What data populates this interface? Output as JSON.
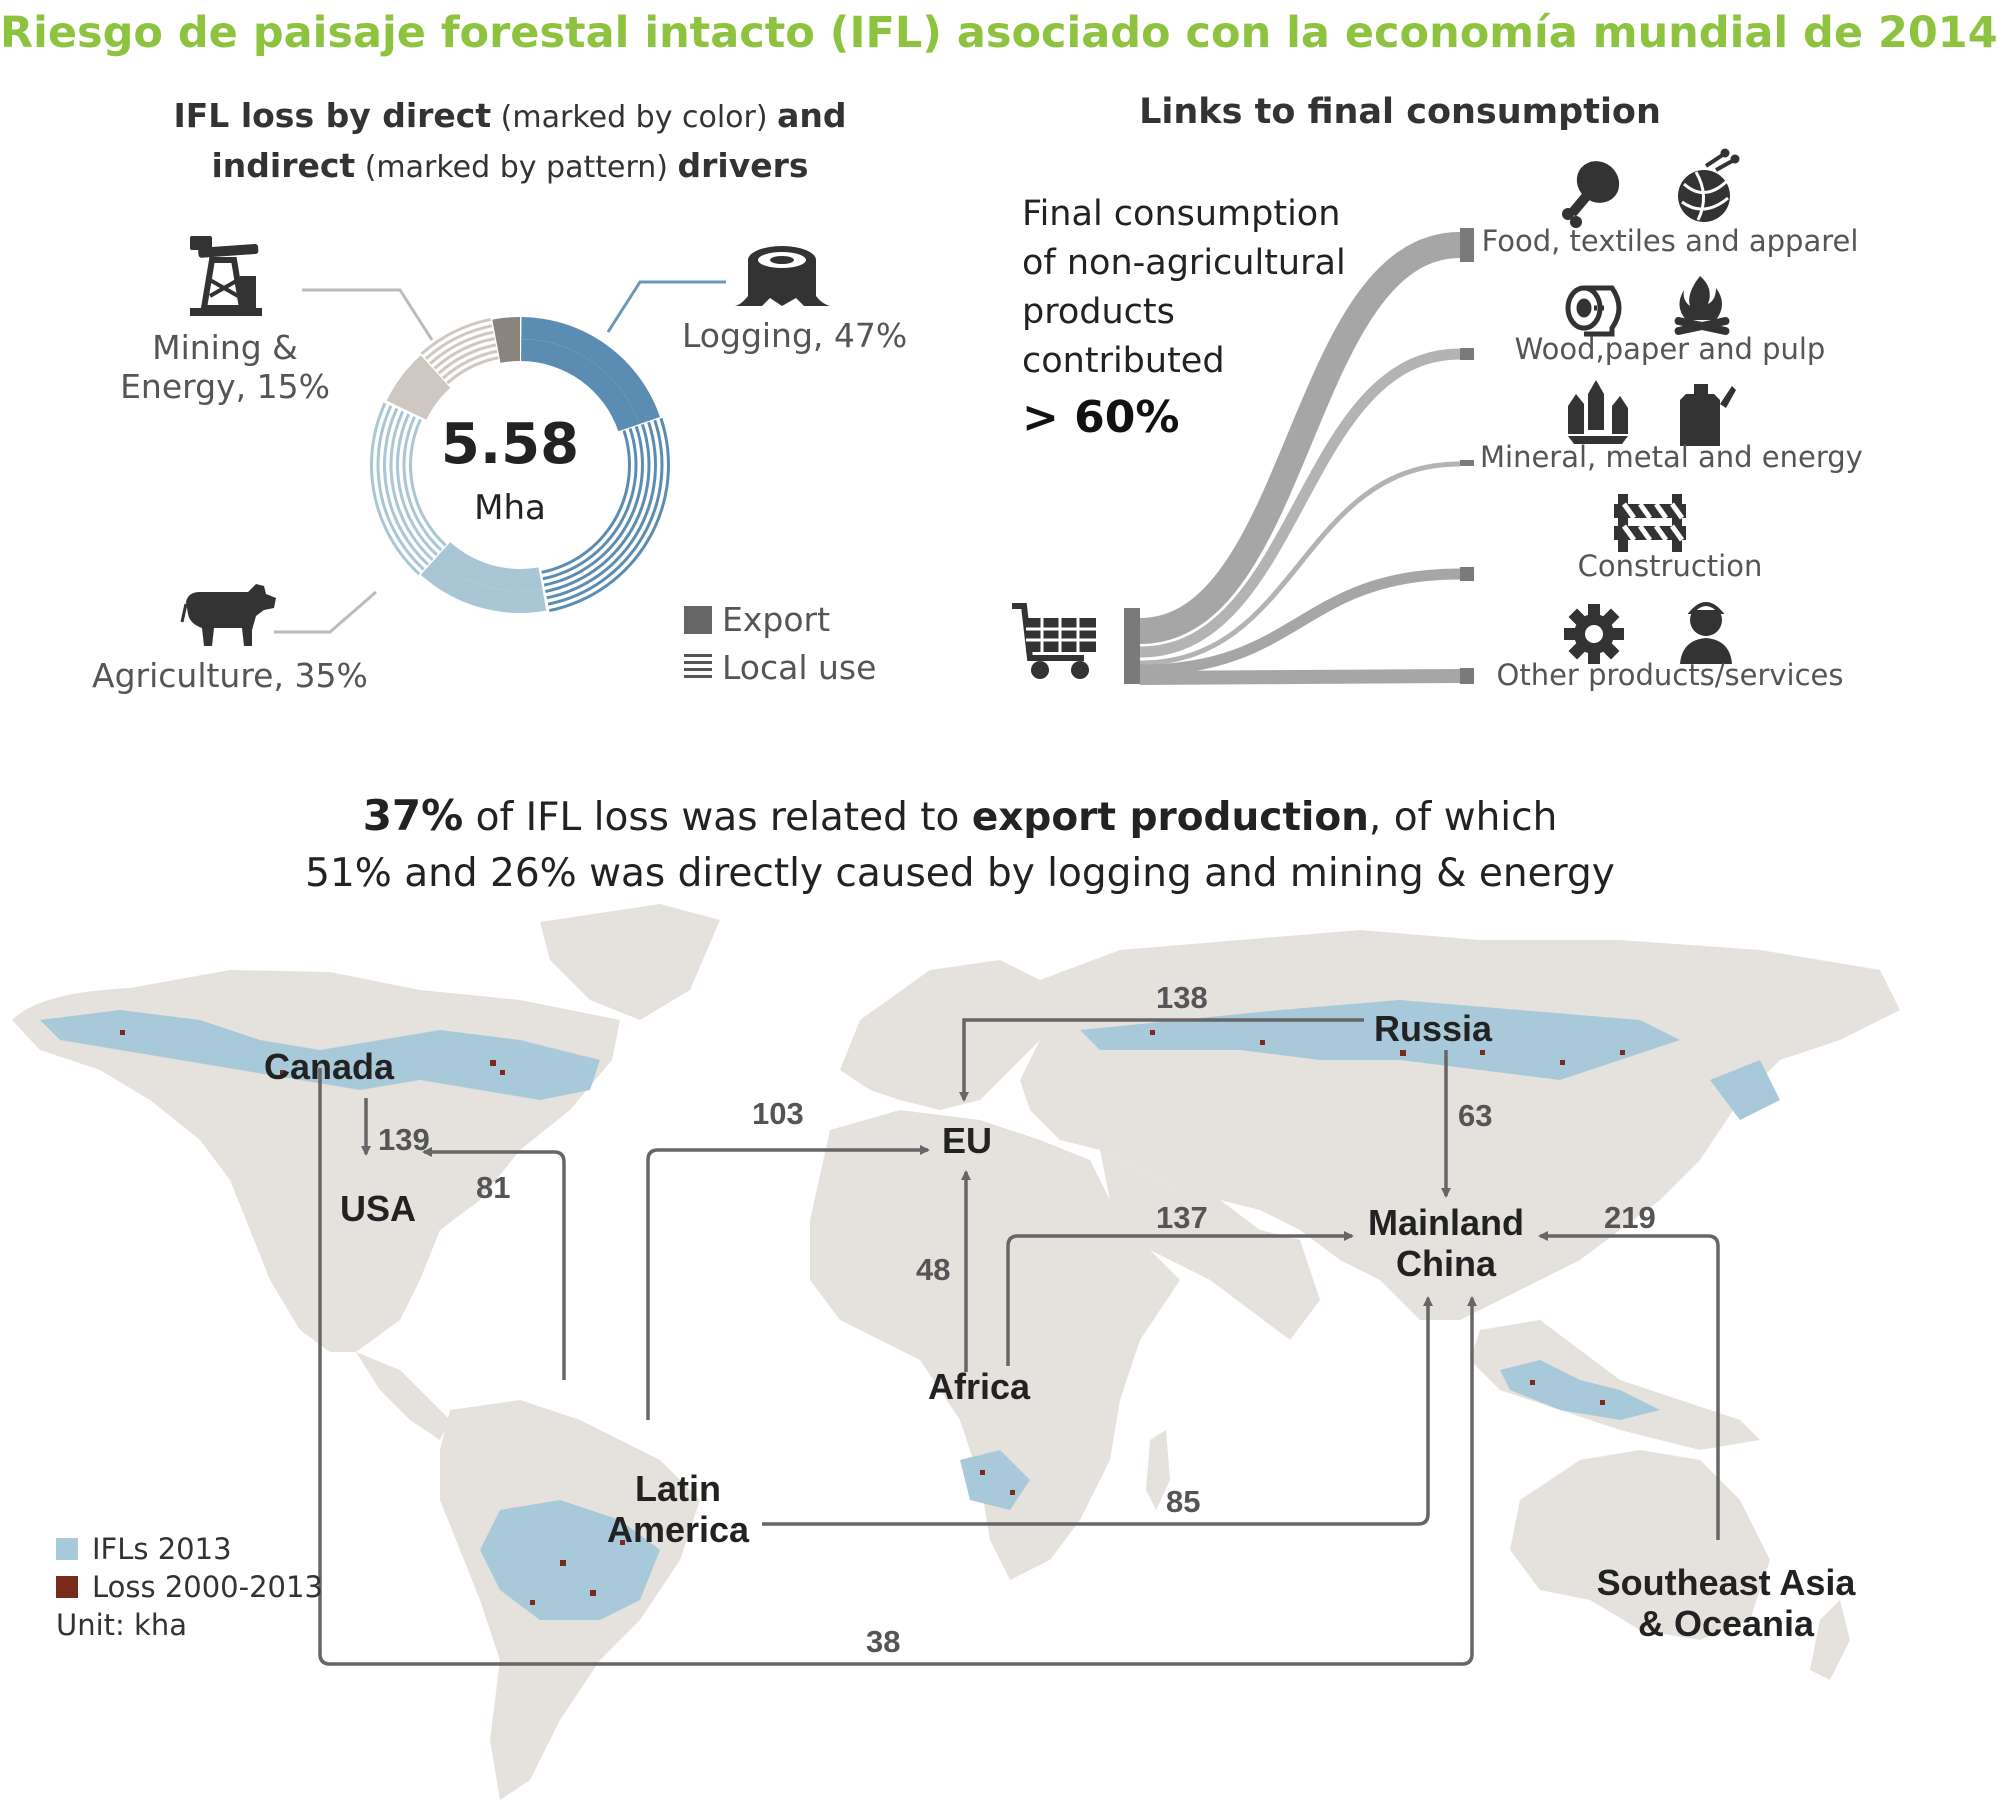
{
  "title": "Riesgo de paisaje forestal intacto (IFL) asociado con la economía mundial de 2014",
  "donut": {
    "heading_bold1": "IFL loss by direct",
    "heading_light1": " (marked by color) ",
    "heading_bold2": "and",
    "heading_bold3": "indirect",
    "heading_light2": " (marked by pattern) ",
    "heading_bold4": "drivers",
    "total_value": "5.58",
    "total_unit": "Mha",
    "labels": {
      "mining_line1": "Mining &",
      "mining_line2": "Energy, 15%",
      "logging": "Logging, 47%",
      "agriculture": "Agriculture, 35%"
    },
    "legend_export": "Export",
    "legend_local": "Local use",
    "colors": {
      "logging": "#5b8db3",
      "agriculture": "#a9c6d6",
      "mining": "#cfc8c2",
      "neutral": "#8a847f"
    },
    "icons": [
      "oil-pump-icon",
      "tree-stump-icon",
      "cow-icon"
    ]
  },
  "chart_data": {
    "type": "pie",
    "title": "",
    "unit": "Mha",
    "total": 5.58,
    "categories": [
      "Logging",
      "Agriculture",
      "Mining & Energy"
    ],
    "values": [
      47,
      35,
      15
    ],
    "value_unit": "%",
    "sub_split": [
      "Export",
      "Local use"
    ]
  },
  "links": {
    "heading": "Links to final consumption",
    "fc_line1": "Final consumption",
    "fc_line2": "of non-agricultural",
    "fc_line3": "products",
    "fc_line4": "contributed",
    "fc_pct": "> 60%",
    "categories": [
      "Food, textiles and apparel",
      "Wood,paper and pulp",
      "Mineral, metal and energy",
      "Construction",
      "Other products/services"
    ],
    "icons": [
      "shopping-cart-icon",
      "drumstick-icon",
      "yarn-ball-icon",
      "toilet-paper-icon",
      "campfire-icon",
      "crystal-icon",
      "fuel-can-icon",
      "barrier-icon",
      "gear-icon",
      "worker-icon"
    ]
  },
  "headline": {
    "pct": "37%",
    "part1": " of IFL loss was related to ",
    "bold": "export production",
    "part2": ", of which",
    "line2": "51% and 26% was directly caused by logging and mining & energy"
  },
  "map": {
    "regions": {
      "canada": "Canada",
      "usa": "USA",
      "russia": "Russia",
      "eu": "EU",
      "china_line1": "Mainland",
      "china_line2": "China",
      "africa": "Africa",
      "latam_line1": "Latin",
      "latam_line2": "America",
      "sea_line1": "Southeast Asia",
      "sea_line2": "& Oceania"
    },
    "flows": [
      {
        "from": "Russia",
        "to": "EU",
        "value": "138"
      },
      {
        "from": "Canada",
        "to": "USA",
        "value": "139"
      },
      {
        "from": "Latin America",
        "to": "USA",
        "value": "81"
      },
      {
        "from": "Latin America",
        "to": "EU",
        "value": "103"
      },
      {
        "from": "Russia",
        "to": "Mainland China",
        "value": "63"
      },
      {
        "from": "Africa",
        "to": "EU",
        "value": "48"
      },
      {
        "from": "Africa",
        "to": "Mainland China",
        "value": "137"
      },
      {
        "from": "Southeast Asia & Oceania",
        "to": "Mainland China",
        "value": "219"
      },
      {
        "from": "Latin America",
        "to": "Mainland China",
        "value": "85"
      },
      {
        "from": "Canada",
        "to": "Mainland China",
        "value": "38"
      }
    ],
    "legend": {
      "ifl": "IFLs 2013",
      "loss": "Loss 2000-2013",
      "unit": "Unit: kha"
    },
    "colors": {
      "land": "#e5e2dd",
      "ifl": "#a8c9d9",
      "loss": "#7a2a1c",
      "arrow": "#666666"
    }
  }
}
